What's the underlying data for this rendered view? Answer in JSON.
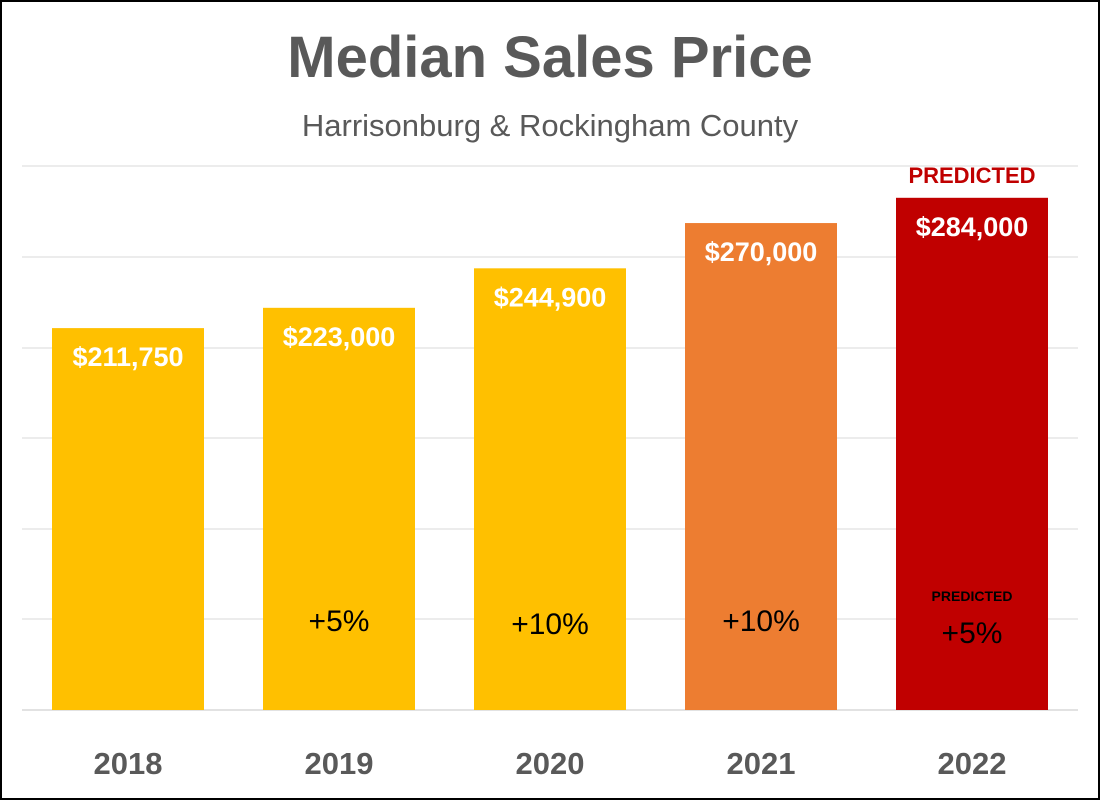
{
  "chart_data": {
    "type": "bar",
    "title": "Median Sales Price",
    "subtitle": "Harrisonburg & Rockingham County",
    "categories": [
      "2018",
      "2019",
      "2020",
      "2021",
      "2022"
    ],
    "values": [
      211750,
      223000,
      244900,
      270000,
      284000
    ],
    "value_labels": [
      "$211,750",
      "$223,000",
      "$244,900",
      "$270,000",
      "$284,000"
    ],
    "change_labels": [
      "",
      "+5%",
      "+10%",
      "+10%",
      "+5%"
    ],
    "change_notes": [
      "",
      "",
      "",
      "",
      "PREDICTED"
    ],
    "top_notes": [
      "",
      "",
      "",
      "",
      "PREDICTED"
    ],
    "colors": [
      "#FFC000",
      "#FFC000",
      "#FFC000",
      "#ED7D31",
      "#C00000"
    ],
    "note_color": "#C00000",
    "grid": true,
    "ylim": [
      0,
      285000
    ]
  }
}
